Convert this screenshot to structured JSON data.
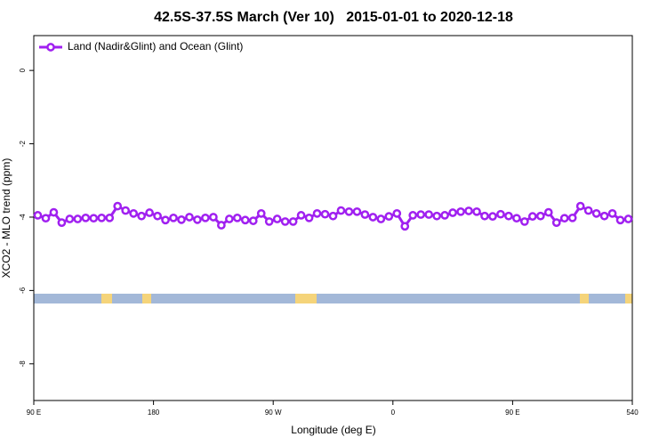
{
  "chart_data": {
    "type": "line",
    "title": "42.5S-37.5S March (Ver 10)   2015-01-01 to 2020-12-18",
    "x_label": "Longitude (deg E)",
    "y_label": "XCO2 - MLO trend (ppm)",
    "x": [
      93,
      99,
      105,
      111,
      117,
      123,
      129,
      135,
      141,
      147,
      153,
      159,
      165,
      171,
      177,
      183,
      189,
      195,
      201,
      207,
      213,
      219,
      225,
      231,
      237,
      243,
      249,
      255,
      261,
      267,
      273,
      279,
      285,
      291,
      297,
      303,
      309,
      315,
      321,
      327,
      333,
      339,
      345,
      351,
      357,
      363,
      369,
      375,
      381,
      387,
      393,
      399,
      405,
      411,
      417,
      423,
      429,
      435,
      441,
      447,
      453,
      459,
      465,
      471,
      477,
      483,
      489,
      495,
      501,
      507,
      513,
      519,
      525,
      531,
      537
    ],
    "series": [
      {
        "name": "Land (Nadir&Glint) and Ocean (Glint)",
        "color": "#a020f0",
        "values": [
          -3.95,
          -4.03,
          -3.87,
          -4.15,
          -4.05,
          -4.05,
          -4.02,
          -4.03,
          -4.02,
          -4.02,
          -3.7,
          -3.82,
          -3.9,
          -3.97,
          -3.88,
          -3.97,
          -4.08,
          -4.02,
          -4.07,
          -4.0,
          -4.07,
          -4.02,
          -4.0,
          -4.22,
          -4.05,
          -4.02,
          -4.08,
          -4.1,
          -3.9,
          -4.12,
          -4.05,
          -4.12,
          -4.12,
          -3.95,
          -4.02,
          -3.9,
          -3.92,
          -3.97,
          -3.82,
          -3.85,
          -3.85,
          -3.93,
          -4.0,
          -4.05,
          -3.98,
          -3.9,
          -4.25,
          -3.95,
          -3.93,
          -3.93,
          -3.97,
          -3.95,
          -3.88,
          -3.85,
          -3.83,
          -3.85,
          -3.97,
          -3.98,
          -3.92,
          -3.97,
          -4.03,
          -4.12,
          -3.98,
          -3.97,
          -3.87,
          -4.15,
          -4.03,
          -4.02,
          -3.7,
          -3.82,
          -3.9,
          -3.97,
          -3.9,
          -4.08,
          -4.05
        ]
      }
    ],
    "xlim": [
      90,
      540
    ],
    "xticks": [
      {
        "value": 90,
        "label": "90 E"
      },
      180,
      {
        "value": 270,
        "label": "90 W"
      },
      {
        "value": 360,
        "label": "0"
      },
      {
        "value": 450,
        "label": "90 E"
      },
      540
    ],
    "ylim": [
      -9,
      0.95
    ],
    "yticks": [
      0,
      -2,
      -4,
      -6,
      -8
    ],
    "legend": "top-left"
  }
}
